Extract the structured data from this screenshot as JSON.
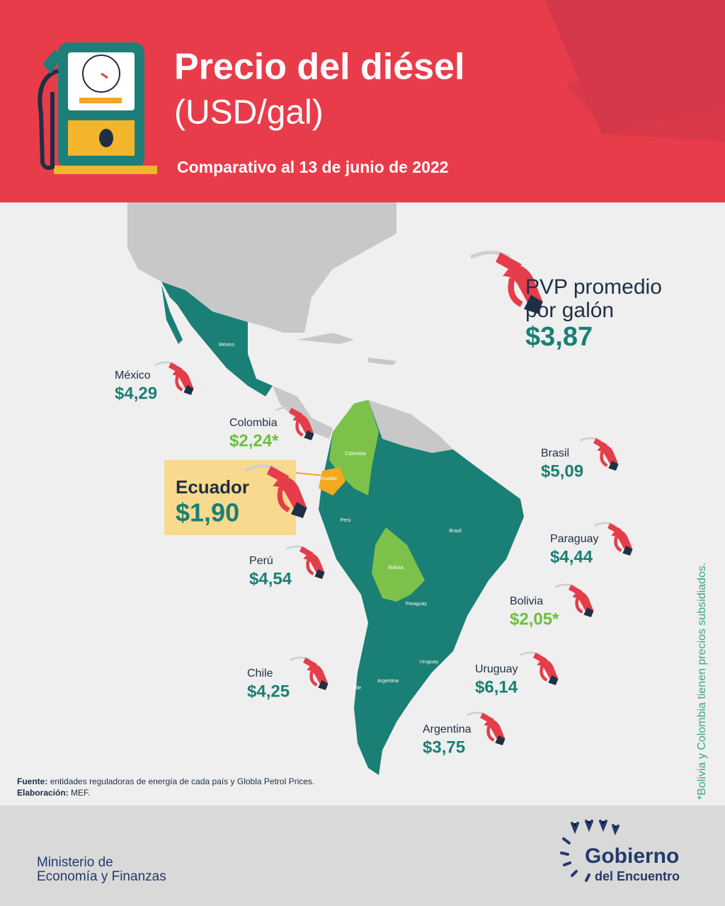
{
  "header": {
    "title": "Precio del diésel",
    "unit": "(USD/gal)",
    "subtitle": "Comparativo al 13 de junio de 2022"
  },
  "average": {
    "label_lines": [
      "PVP promedio",
      "por galón"
    ],
    "value": "$3,87"
  },
  "countries": [
    {
      "name": "México",
      "price": "$4,29",
      "subsidized": false
    },
    {
      "name": "Colombia",
      "price": "$2,24*",
      "subsidized": true
    },
    {
      "name": "Ecuador",
      "price": "$1,90",
      "subsidized": false
    },
    {
      "name": "Perú",
      "price": "$4,54",
      "subsidized": false
    },
    {
      "name": "Brasil",
      "price": "$5,09",
      "subsidized": false
    },
    {
      "name": "Paraguay",
      "price": "$4,44",
      "subsidized": false
    },
    {
      "name": "Bolivia",
      "price": "$2,05*",
      "subsidized": true
    },
    {
      "name": "Uruguay",
      "price": "$6,14",
      "subsidized": false
    },
    {
      "name": "Chile",
      "price": "$4,25",
      "subsidized": false
    },
    {
      "name": "Argentina",
      "price": "$3,75",
      "subsidized": false
    }
  ],
  "map_labels": [
    "México",
    "Colombia",
    "Ecuador",
    "Perú",
    "Brasil",
    "Bolivia",
    "Paraguay",
    "Uruguay",
    "Argentina",
    "Chile"
  ],
  "note": "*Bolivia y Colombia tienen precios subsidiados.",
  "source": {
    "label": "Fuente:",
    "text": "entidades reguladoras de energía de cada país y Globla Petrol Prices."
  },
  "elaboration": {
    "label": "Elaboración:",
    "text": "MEF."
  },
  "footer": {
    "ministry_lines": [
      "Ministerio de",
      "Economía y Finanzas"
    ],
    "logo_lines": [
      "Gobierno",
      "del Encuentro"
    ]
  }
}
